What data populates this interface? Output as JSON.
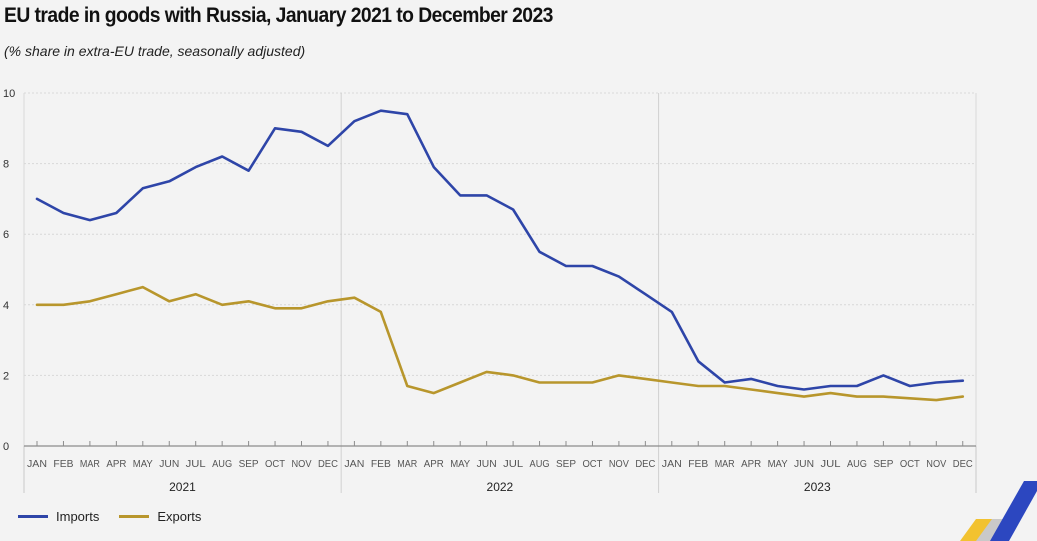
{
  "title": "EU trade in goods with Russia, January 2021 to December 2023",
  "subtitle": "(% share in extra-EU trade, seasonally adjusted)",
  "colors": {
    "imports": "#2e45a8",
    "exports": "#b8962c",
    "grid": "#d8d8d8",
    "axis": "#8c8c8c"
  },
  "legend": {
    "imports_label": "Imports",
    "exports_label": "Exports"
  },
  "chart_data": {
    "type": "line",
    "title": "EU trade in goods with Russia, January 2021 to December 2023",
    "subtitle": "(% share in extra-EU trade, seasonally adjusted)",
    "xlabel": "",
    "ylabel": "",
    "ylim": [
      0,
      10
    ],
    "yticks": [
      0,
      2,
      4,
      6,
      8,
      10
    ],
    "grid": true,
    "legend_position": "bottom-left",
    "month_labels": [
      "JAN",
      "FEB",
      "MAR",
      "APR",
      "MAY",
      "JUN",
      "JUL",
      "AUG",
      "SEP",
      "OCT",
      "NOV",
      "DEC"
    ],
    "years": [
      "2021",
      "2022",
      "2023"
    ],
    "series": [
      {
        "name": "Imports",
        "values": [
          7.0,
          6.6,
          6.4,
          6.6,
          7.3,
          7.5,
          7.9,
          8.2,
          7.8,
          9.0,
          8.9,
          8.5,
          9.2,
          9.5,
          9.4,
          7.9,
          7.1,
          7.1,
          6.7,
          5.5,
          5.1,
          5.1,
          4.8,
          4.3,
          3.8,
          2.4,
          1.8,
          1.9,
          1.7,
          1.6,
          1.7,
          1.7,
          2.0,
          1.7,
          1.8,
          1.85
        ]
      },
      {
        "name": "Exports",
        "values": [
          4.0,
          4.0,
          4.1,
          4.3,
          4.5,
          4.1,
          4.3,
          4.0,
          4.1,
          3.9,
          3.9,
          4.1,
          4.2,
          3.8,
          1.7,
          1.5,
          1.8,
          2.1,
          2.0,
          1.8,
          1.8,
          1.8,
          2.0,
          1.9,
          1.8,
          1.7,
          1.7,
          1.6,
          1.5,
          1.4,
          1.5,
          1.4,
          1.4,
          1.35,
          1.3,
          1.4
        ]
      }
    ]
  }
}
